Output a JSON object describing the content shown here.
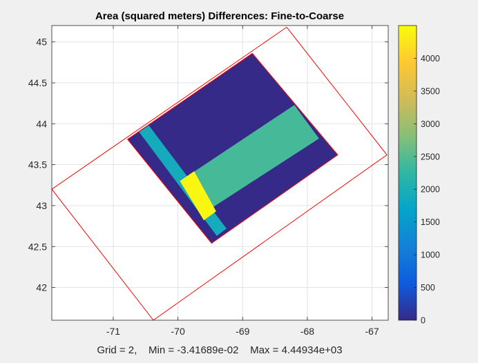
{
  "chart_data": {
    "type": "heatmap",
    "title": "Area (squared meters) Differences: Fine-to-Coarse",
    "footer": "Grid = 2,    Min = -3.41689e-02    Max = 4.44934e+03",
    "xlim": [
      -71.95,
      -66.75
    ],
    "ylim": [
      41.6,
      45.2
    ],
    "xticks": [
      -71,
      -70,
      -69,
      -68,
      -67
    ],
    "xtick_labels": [
      "-71",
      "-70",
      "-69",
      "-68",
      "-67"
    ],
    "yticks": [
      42,
      42.5,
      43,
      43.5,
      44,
      44.5,
      45
    ],
    "ytick_labels": [
      "42",
      "42.5",
      "43",
      "43.5",
      "44",
      "44.5",
      "45"
    ],
    "grid": true,
    "colormap": "parula",
    "color_range": [
      0,
      4500
    ],
    "colorbar": {
      "ticks": [
        0,
        500,
        1000,
        1500,
        2000,
        2500,
        3000,
        3500,
        4000
      ],
      "labels": [
        "0",
        "500",
        "1000",
        "1500",
        "2000",
        "2500",
        "3000",
        "3500",
        "4000"
      ]
    },
    "outline_color": "#ff0000",
    "outer_boundary": [
      [
        -71.95,
        43.2
      ],
      [
        -68.32,
        45.18
      ],
      [
        -66.77,
        43.62
      ],
      [
        -70.38,
        41.6
      ]
    ],
    "inner_boundary": [
      [
        -70.78,
        43.81
      ],
      [
        -68.85,
        44.86
      ],
      [
        -67.53,
        43.62
      ],
      [
        -69.48,
        42.54
      ]
    ],
    "cells": [
      {
        "name": "background-low",
        "value": 0,
        "polygon": [
          [
            -70.78,
            43.81
          ],
          [
            -68.85,
            44.86
          ],
          [
            -67.53,
            43.62
          ],
          [
            -69.48,
            42.54
          ]
        ]
      },
      {
        "name": "band-mid",
        "value": 2400,
        "polygon": [
          [
            -69.97,
            43.3
          ],
          [
            -68.2,
            44.23
          ],
          [
            -67.82,
            43.82
          ],
          [
            -69.52,
            42.95
          ]
        ]
      },
      {
        "name": "strip-vertical",
        "value": 1900,
        "polygon": [
          [
            -70.6,
            43.9
          ],
          [
            -70.45,
            43.98
          ],
          [
            -69.25,
            42.72
          ],
          [
            -69.4,
            42.63
          ]
        ]
      },
      {
        "name": "overlap-high",
        "value": 4449.34,
        "polygon": [
          [
            -69.97,
            43.3
          ],
          [
            -69.75,
            43.42
          ],
          [
            -69.41,
            42.93
          ],
          [
            -69.6,
            42.82
          ]
        ]
      }
    ]
  }
}
